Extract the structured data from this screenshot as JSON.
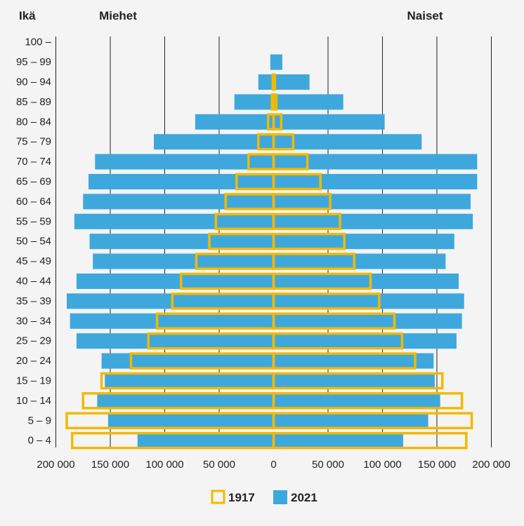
{
  "chart_data": {
    "type": "bar",
    "orientation": "horizontal-pyramid",
    "headers": {
      "age": "Ikä",
      "left": "Miehet",
      "right": "Naiset"
    },
    "categories": [
      "0 – 4",
      "5 – 9",
      "10 – 14",
      "15 – 19",
      "20 – 24",
      "25 – 29",
      "30 – 34",
      "35 – 39",
      "40 – 44",
      "45 – 49",
      "50 – 54",
      "55 – 59",
      "60 – 64",
      "65 – 69",
      "70 – 74",
      "75 – 79",
      "80 – 84",
      "85 – 89",
      "90 – 94",
      "95 – 99",
      "100 –"
    ],
    "x_ticks": [
      -200000,
      -150000,
      -100000,
      -50000,
      0,
      50000,
      100000,
      150000,
      200000
    ],
    "x_tick_labels": [
      "200 000",
      "150 000",
      "100 000",
      "50 000",
      "0",
      "50 000",
      "100 000",
      "150 000",
      "200 000"
    ],
    "xlim": [
      -200000,
      200000
    ],
    "grid": "vertical",
    "legend_position": "bottom-center",
    "series": [
      {
        "name": "2021",
        "style": "filled",
        "color": "#3ea8dd",
        "men": [
          125000,
          152000,
          162000,
          155000,
          158000,
          181000,
          187000,
          190000,
          181000,
          166000,
          169000,
          183000,
          175000,
          170000,
          164000,
          110000,
          72000,
          36000,
          14000,
          3000,
          0
        ],
        "women": [
          119000,
          142000,
          153000,
          148000,
          147000,
          168000,
          173000,
          175000,
          170000,
          158000,
          166000,
          183000,
          181000,
          187000,
          187000,
          136000,
          102000,
          64000,
          33000,
          8000,
          0
        ]
      },
      {
        "name": "1917",
        "style": "outline",
        "color": "#f2b900",
        "men": [
          185000,
          190000,
          175000,
          158000,
          131000,
          115000,
          107000,
          93000,
          85000,
          71000,
          59000,
          53000,
          44000,
          34000,
          23000,
          14000,
          5000,
          1500,
          800,
          0,
          0
        ],
        "women": [
          177000,
          182000,
          173000,
          155000,
          130000,
          118000,
          111000,
          97000,
          89000,
          74000,
          65000,
          61000,
          52000,
          43000,
          31000,
          18000,
          7000,
          2500,
          1200,
          0,
          0
        ]
      }
    ],
    "legend": [
      "1917",
      "2021"
    ]
  }
}
